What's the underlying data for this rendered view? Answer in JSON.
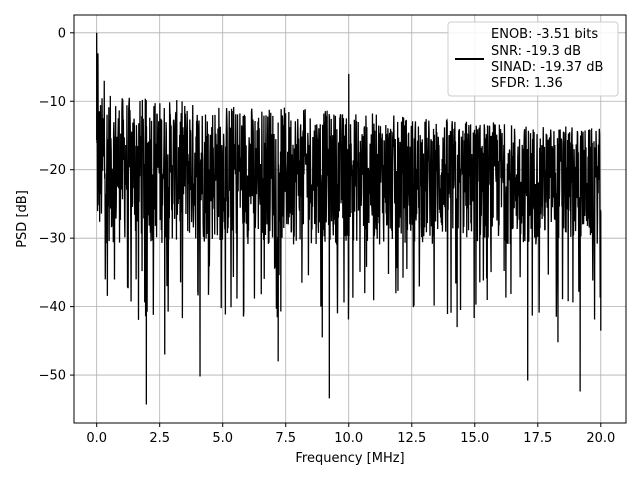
{
  "chart_data": {
    "type": "line",
    "title": "",
    "xlabel": "Frequency [MHz]",
    "ylabel": "PSD [dB]",
    "xlim": [
      -0.9,
      21.0
    ],
    "ylim": [
      -57,
      2.6
    ],
    "x_ticks": [
      0.0,
      2.5,
      5.0,
      7.5,
      10.0,
      12.5,
      15.0,
      17.5,
      20.0
    ],
    "x_tick_labels": [
      "0.0",
      "2.5",
      "5.0",
      "7.5",
      "10.0",
      "12.5",
      "15.0",
      "17.5",
      "20.0"
    ],
    "y_ticks": [
      0,
      -10,
      -20,
      -30,
      -40,
      -50
    ],
    "y_tick_labels": [
      "0",
      "−10",
      "−20",
      "−30",
      "−40",
      "−50"
    ],
    "grid": true,
    "legend_placement": "top-right",
    "legend_lines": [
      "ENOB: -3.51 bits",
      "SNR: -19.3 dB",
      "SINAD: -19.37 dB",
      "SFDR: 1.36"
    ],
    "series": [
      {
        "color": "#000000",
        "noise_band_db": {
          "upper_start": -9,
          "upper_end": -14,
          "lower": -31
        },
        "spikes": [
          {
            "x": 0.0,
            "y": 0.0
          },
          {
            "x": 0.05,
            "y": -3
          },
          {
            "x": 0.3,
            "y": -7
          },
          {
            "x": 10.0,
            "y": -6
          }
        ],
        "dips": [
          {
            "x": 1.97,
            "y": -54.3
          },
          {
            "x": 2.7,
            "y": -47
          },
          {
            "x": 4.1,
            "y": -50.2
          },
          {
            "x": 7.2,
            "y": -48
          },
          {
            "x": 8.95,
            "y": -44.5
          },
          {
            "x": 9.23,
            "y": -53.4
          },
          {
            "x": 14.3,
            "y": -43
          },
          {
            "x": 17.1,
            "y": -50.8
          },
          {
            "x": 18.3,
            "y": -45.2
          },
          {
            "x": 19.18,
            "y": -52.4
          },
          {
            "x": 20.0,
            "y": -43.5
          }
        ]
      }
    ]
  }
}
